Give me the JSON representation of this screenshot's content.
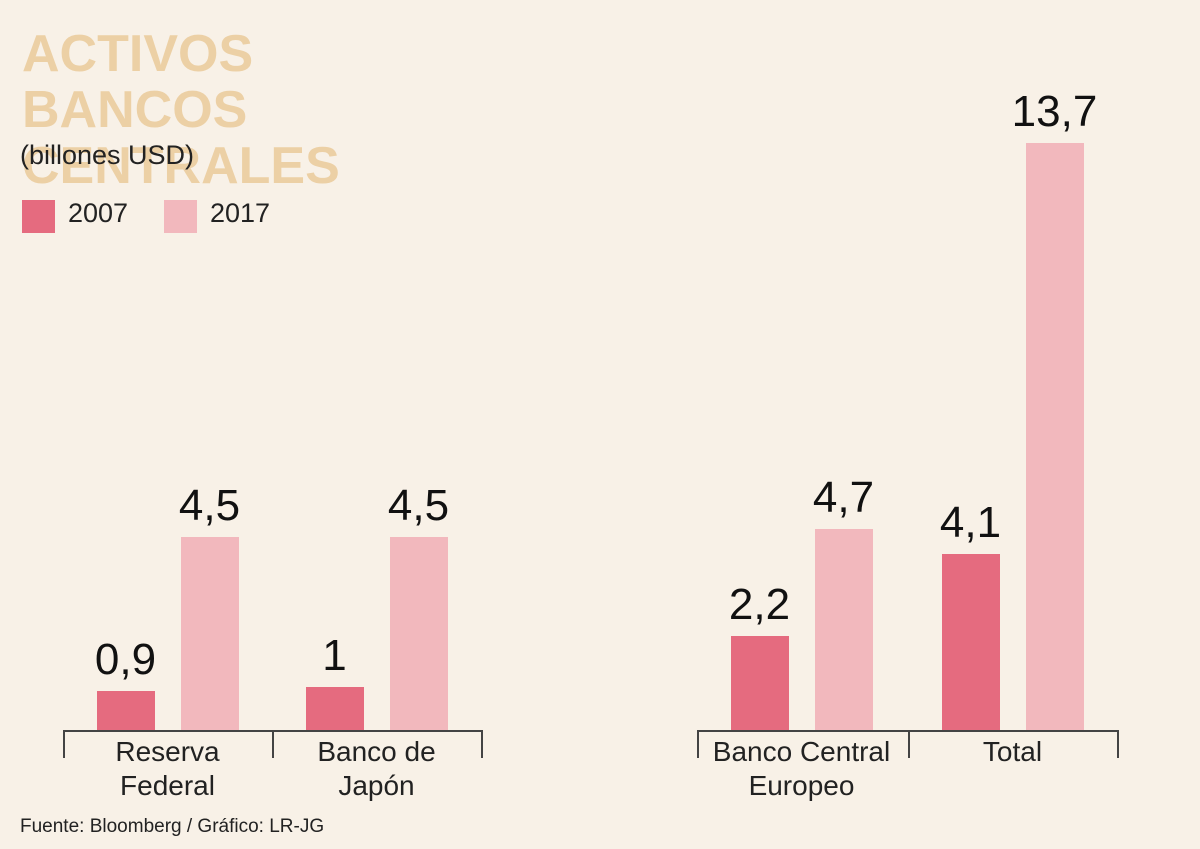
{
  "chart_data": {
    "type": "bar",
    "title": "ACTIVOS BANCOS CENTRALES",
    "subtitle": "(billones USD)",
    "source": "Fuente: Bloomberg / Gráfico: LR-JG",
    "categories": [
      "Reserva Federal",
      "Banco de Japón",
      "Banco Central Europeo",
      "Total"
    ],
    "series": [
      {
        "name": "2007",
        "color": "#e56b7f",
        "values": [
          0.9,
          1,
          2.2,
          4.1
        ],
        "value_labels": [
          "0,9",
          "1",
          "2,2",
          "4,1"
        ]
      },
      {
        "name": "2017",
        "color": "#f2b8bd",
        "values": [
          4.5,
          4.5,
          4.7,
          13.7
        ],
        "value_labels": [
          "4,5",
          "4,5",
          "4,7",
          "13,7"
        ]
      }
    ],
    "legend": "top-left"
  }
}
